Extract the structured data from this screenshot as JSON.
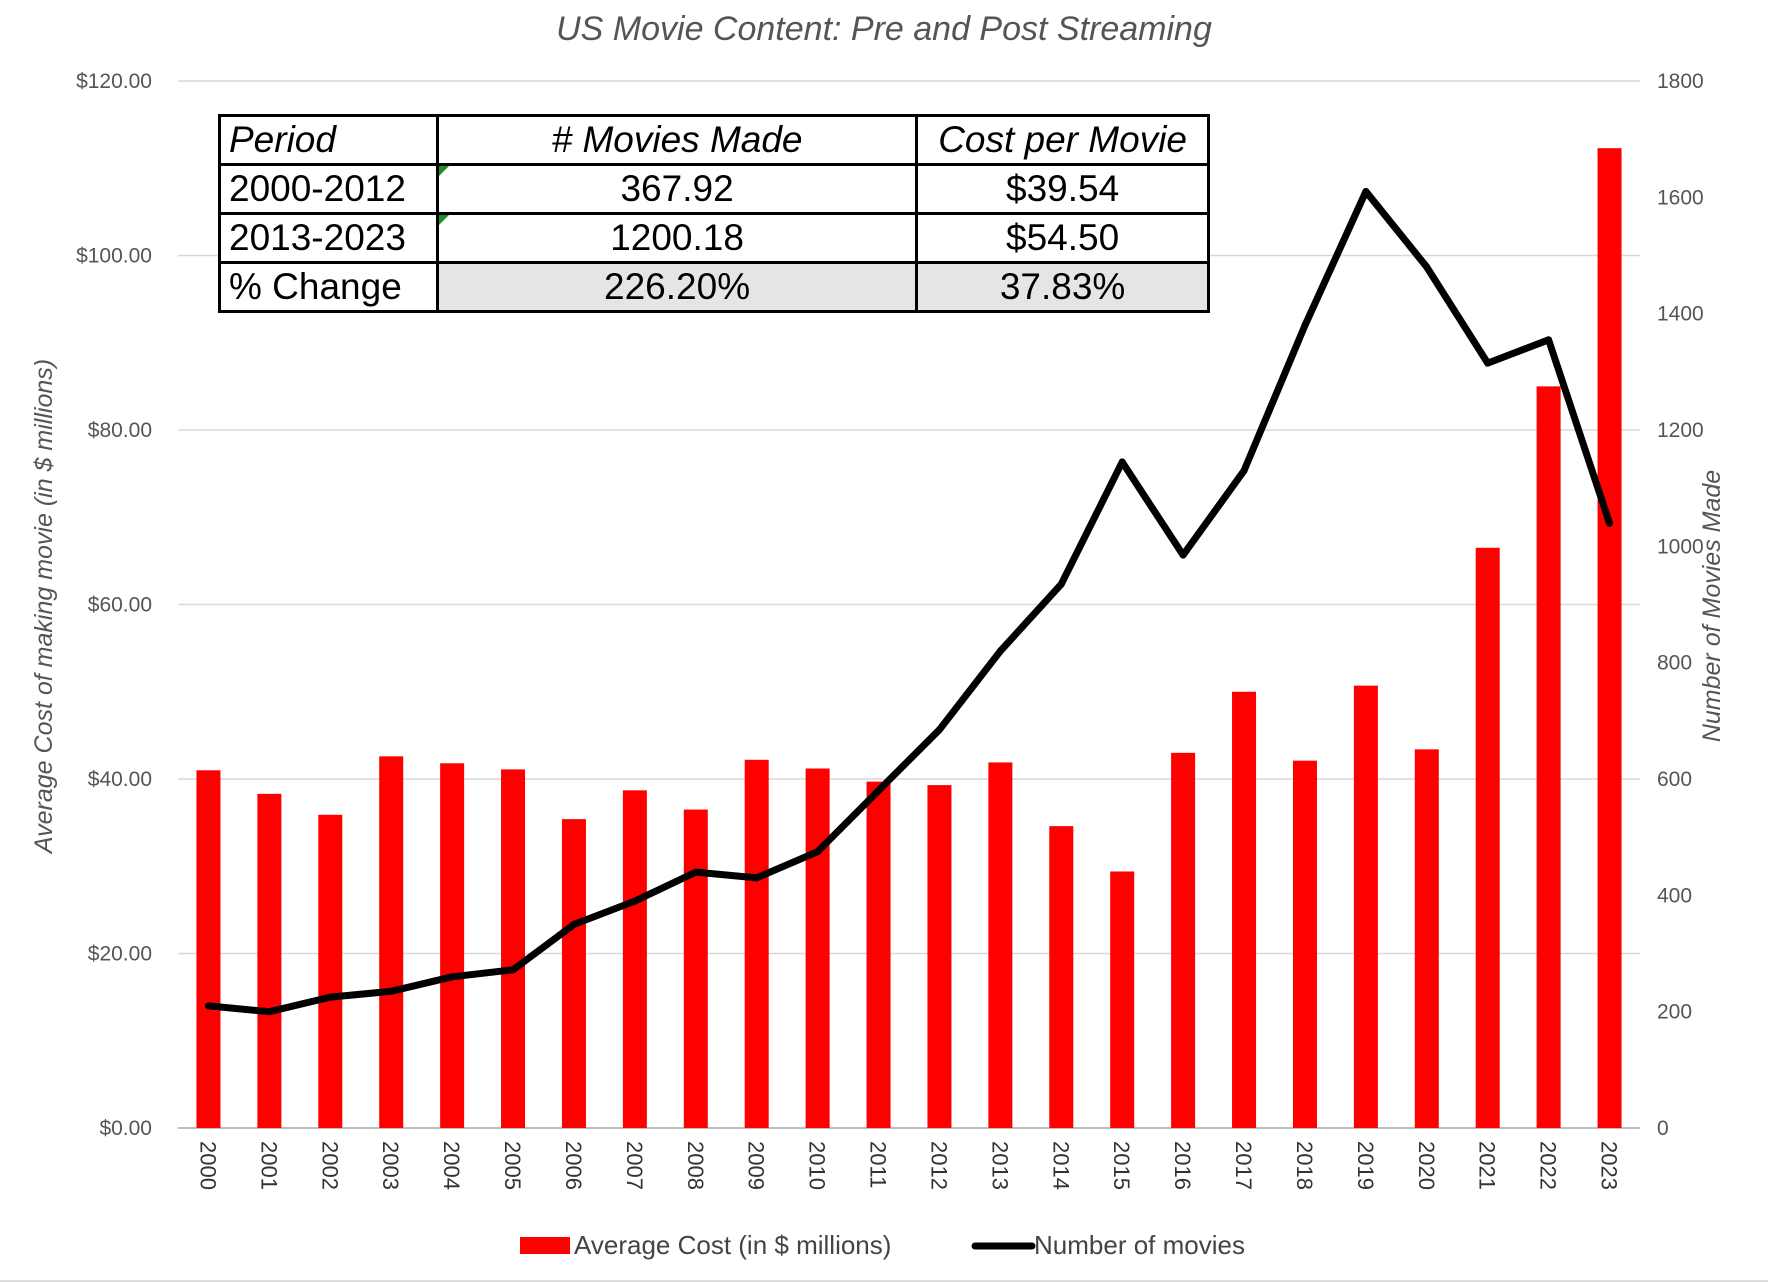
{
  "chart_data": {
    "type": "bar",
    "title": "US Movie Content: Pre and Post Streaming",
    "categories": [
      "2000",
      "2001",
      "2002",
      "2003",
      "2004",
      "2005",
      "2006",
      "2007",
      "2008",
      "2009",
      "2010",
      "2011",
      "2012",
      "2013",
      "2014",
      "2015",
      "2016",
      "2017",
      "2018",
      "2019",
      "2020",
      "2021",
      "2022",
      "2023"
    ],
    "series": [
      {
        "name": "Average Cost (in $ millions)",
        "type": "bar",
        "axis": "left",
        "color": "#ff0000",
        "values": [
          41.0,
          38.3,
          35.9,
          42.6,
          41.8,
          41.1,
          35.4,
          38.7,
          36.5,
          42.2,
          41.2,
          39.7,
          39.3,
          41.9,
          34.6,
          29.4,
          43.0,
          50.0,
          42.1,
          50.7,
          43.4,
          66.5,
          85.0,
          112.3
        ]
      },
      {
        "name": "Number of movies",
        "type": "line",
        "axis": "right",
        "color": "#000000",
        "values": [
          210,
          200,
          225,
          235,
          260,
          272,
          350,
          390,
          440,
          430,
          475,
          580,
          685,
          820,
          935,
          1145,
          985,
          1130,
          1380,
          1610,
          1480,
          1315,
          1355,
          1040
        ]
      }
    ],
    "y_left": {
      "label": "Average Cost of making movie (in $ millions)",
      "range": [
        0,
        120
      ],
      "ticks": [
        "$0.00",
        "$20.00",
        "$40.00",
        "$60.00",
        "$80.00",
        "$100.00",
        "$120.00"
      ]
    },
    "y_right": {
      "label": "Number of Movies Made",
      "range": [
        0,
        1800
      ],
      "ticks": [
        "0",
        "200",
        "400",
        "600",
        "800",
        "1000",
        "1200",
        "1400",
        "1600",
        "1800"
      ]
    },
    "grid": true,
    "legend_position": "bottom",
    "table": {
      "headers": [
        "Period",
        "# Movies Made",
        "Cost per Movie"
      ],
      "rows": [
        [
          "2000-2012",
          "367.92",
          "$39.54"
        ],
        [
          "2013-2023",
          "1200.18",
          "$54.50"
        ],
        [
          "% Change",
          "226.20%",
          "37.83%"
        ]
      ]
    }
  }
}
